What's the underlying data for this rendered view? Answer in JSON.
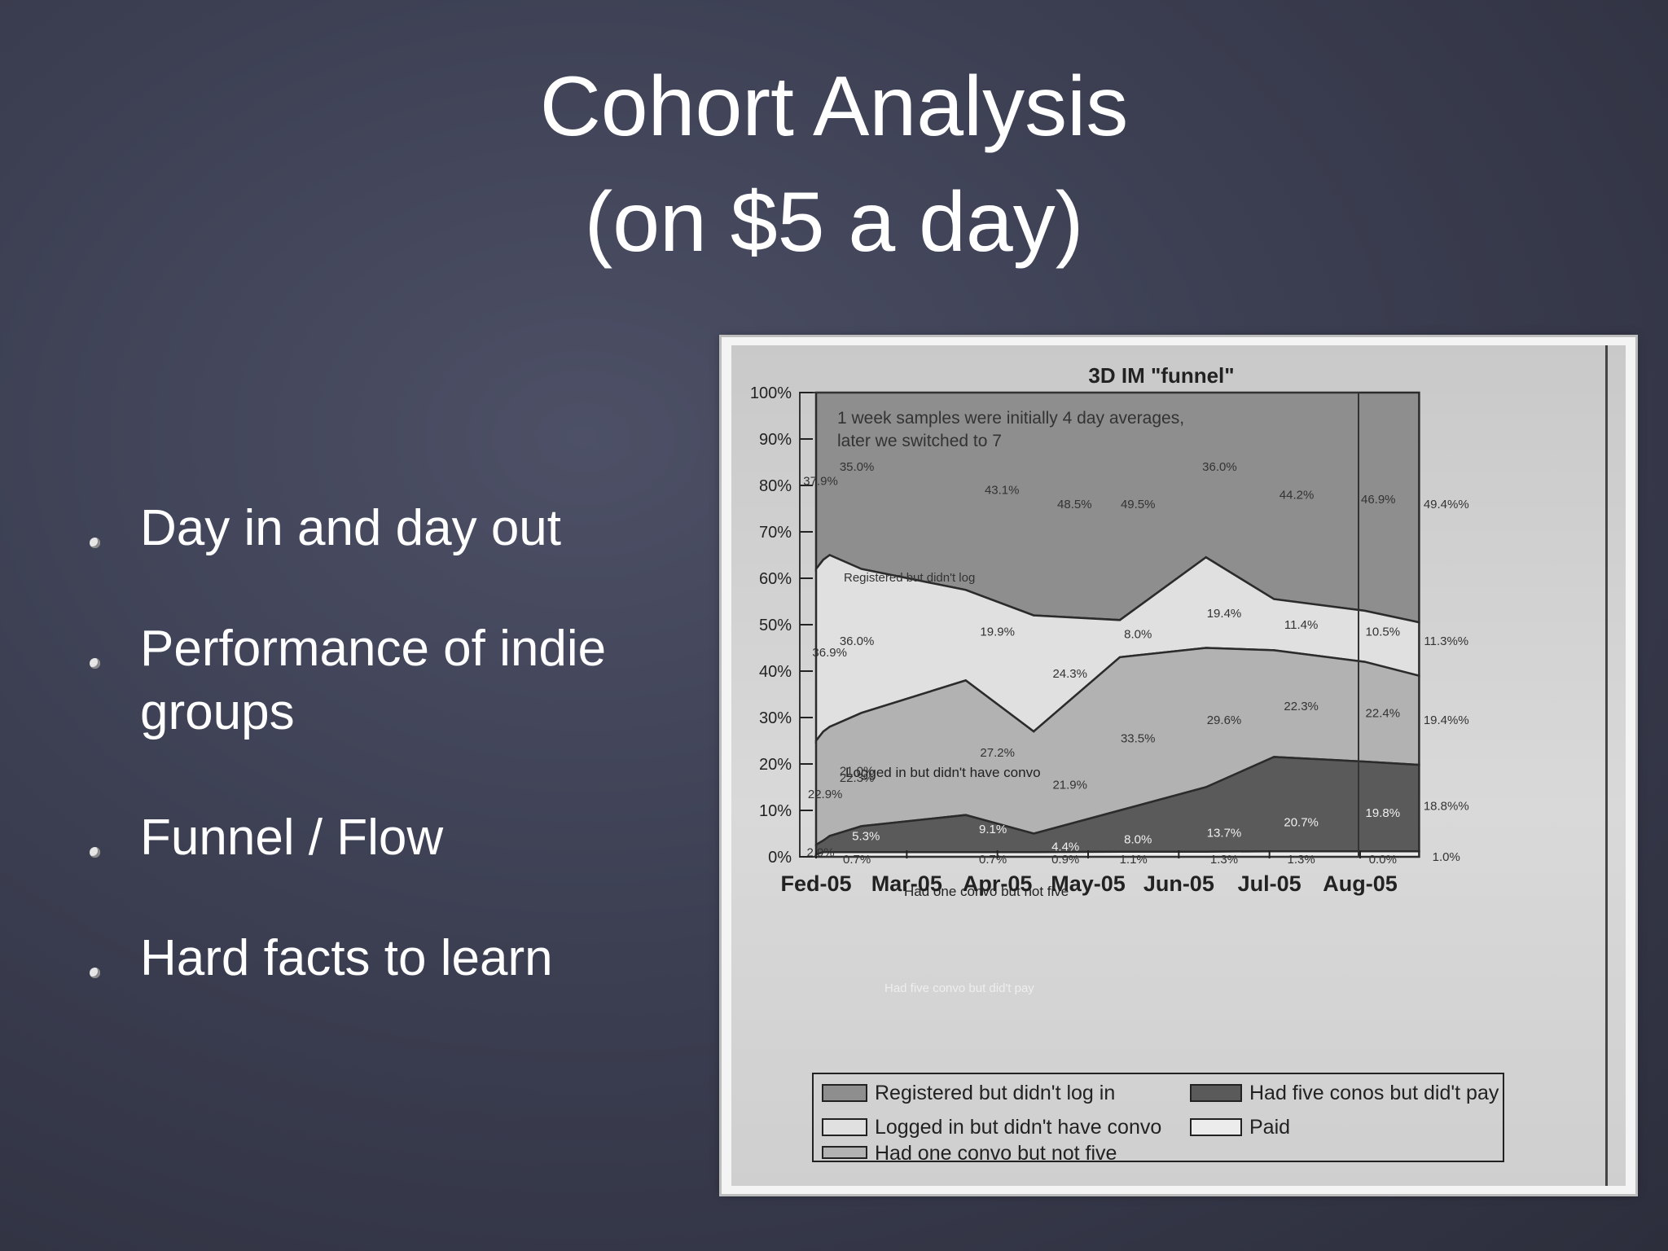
{
  "slide": {
    "title_line1": "Cohort Analysis",
    "title_line2": "(on $5 a day)",
    "bullets": [
      "Day in and day out",
      "Performance of indie groups",
      "Funnel / Flow",
      "Hard facts to learn"
    ]
  },
  "colors": {
    "background": "#3c3f52",
    "registered": "#8e8e8e",
    "logged_in": "#e0e0e0",
    "one_convo": "#b2b2b2",
    "five_convos": "#5a5a5a",
    "paid": "#ececec"
  },
  "chart_data": {
    "type": "area",
    "title": "3D IM \"funnel\"",
    "annotation_line1": "1 week samples were initially 4 day averages,",
    "annotation_line2": "later we switched to 7",
    "categories": [
      "Fed-05",
      "Mar-05",
      "Apr-05",
      "May-05",
      "Jun-05",
      "Jul-05",
      "Aug-05"
    ],
    "yticks": [
      "0%",
      "10%",
      "20%",
      "30%",
      "40%",
      "50%",
      "60%",
      "70%",
      "80%",
      "90%",
      "100%"
    ],
    "ylim": [
      0,
      100
    ],
    "legend_position": "bottom",
    "x": [
      0,
      0.08,
      0.15,
      0.5,
      1.65,
      2.4,
      3.35,
      4.3,
      5.05,
      6.05,
      6.65
    ],
    "cumulative_boundaries": {
      "paid": [
        0.5,
        1,
        1,
        1,
        1,
        1,
        1.1,
        1.1,
        1.2,
        1.2,
        1.2
      ],
      "five_convos": [
        2.6,
        3.5,
        4.5,
        6.6,
        9,
        5,
        10,
        15,
        21.5,
        20.5,
        19.8
      ],
      "one_convo": [
        25,
        27,
        28,
        31,
        38,
        27,
        43,
        45,
        44.5,
        42,
        39
      ],
      "logged_in": [
        62,
        64,
        65,
        62,
        57.5,
        52,
        51,
        64.5,
        55.5,
        53,
        50.5
      ],
      "registered": [
        100,
        100,
        100,
        100,
        100,
        100,
        100,
        100,
        100,
        100,
        100
      ]
    },
    "series": [
      {
        "name": "Registered but didn't log in",
        "label": "Registered but didn't log"
      },
      {
        "name": "Logged in but didn't have convo",
        "label": "Logged in but didn't have convo"
      },
      {
        "name": "Had one convo but not five",
        "label": "Had one convo but not five"
      },
      {
        "name": "Had five conos but did't pay",
        "label": "Had five convo but did't pay"
      },
      {
        "name": "Paid"
      }
    ],
    "data_labels": [
      {
        "text": "37.9%",
        "x": 0.05,
        "y": 81
      },
      {
        "text": "35.0%",
        "x": 0.45,
        "y": 84
      },
      {
        "text": "43.1%",
        "x": 2.05,
        "y": 79
      },
      {
        "text": "48.5%",
        "x": 2.85,
        "y": 76
      },
      {
        "text": "49.5%",
        "x": 3.55,
        "y": 76
      },
      {
        "text": "36.0%",
        "x": 4.45,
        "y": 84
      },
      {
        "text": "44.2%",
        "x": 5.3,
        "y": 78
      },
      {
        "text": "46.9%",
        "x": 6.2,
        "y": 77
      },
      {
        "text": "49.4%%",
        "x": 6.95,
        "y": 76
      },
      {
        "text": "36.0%",
        "x": 0.45,
        "y": 46.5
      },
      {
        "text": "36.9%",
        "x": 0.15,
        "y": 44
      },
      {
        "text": "19.9%",
        "x": 2.0,
        "y": 48.5
      },
      {
        "text": "8.0%",
        "x": 3.55,
        "y": 48
      },
      {
        "text": "19.4%",
        "x": 4.5,
        "y": 52.5
      },
      {
        "text": "11.4%",
        "x": 5.35,
        "y": 50
      },
      {
        "text": "10.5%",
        "x": 6.25,
        "y": 48.5
      },
      {
        "text": "11.3%%",
        "x": 6.95,
        "y": 46.5
      },
      {
        "text": "24.3%",
        "x": 2.8,
        "y": 39.5
      },
      {
        "text": "29.6%",
        "x": 4.5,
        "y": 29.5
      },
      {
        "text": "22.3%",
        "x": 5.35,
        "y": 32.5
      },
      {
        "text": "22.4%",
        "x": 6.25,
        "y": 31
      },
      {
        "text": "19.4%%",
        "x": 6.95,
        "y": 29.5
      },
      {
        "text": "27.2%",
        "x": 2.0,
        "y": 22.5
      },
      {
        "text": "33.5%",
        "x": 3.55,
        "y": 25.5
      },
      {
        "text": "21.0%",
        "x": 0.45,
        "y": 18.5
      },
      {
        "text": "22.3%",
        "x": 0.45,
        "y": 17
      },
      {
        "text": "22.9%",
        "x": 0.1,
        "y": 13.5
      },
      {
        "text": "21.9%",
        "x": 2.8,
        "y": 15.5
      },
      {
        "text": "9.1%",
        "x": 1.95,
        "y": 6
      },
      {
        "text": "5.3%",
        "x": 0.55,
        "y": 4.5
      },
      {
        "text": "4.4%",
        "x": 2.75,
        "y": 2.2
      },
      {
        "text": "8.0%",
        "x": 3.55,
        "y": 3.8
      },
      {
        "text": "13.7%",
        "x": 4.5,
        "y": 5.2
      },
      {
        "text": "20.7%",
        "x": 5.35,
        "y": 7.5
      },
      {
        "text": "19.8%",
        "x": 6.25,
        "y": 9.5
      },
      {
        "text": "18.8%%",
        "x": 6.95,
        "y": 11
      },
      {
        "text": "2.9%",
        "x": 0.05,
        "y": 1
      },
      {
        "text": "0.7%",
        "x": 0.45,
        "y": -0.5
      },
      {
        "text": "0.7%",
        "x": 1.95,
        "y": -0.5
      },
      {
        "text": "0.9%",
        "x": 2.75,
        "y": -0.5
      },
      {
        "text": "1.1%",
        "x": 3.5,
        "y": -0.5
      },
      {
        "text": "1.3%",
        "x": 4.5,
        "y": -0.5
      },
      {
        "text": "1.3%",
        "x": 5.35,
        "y": -0.5
      },
      {
        "text": "0.0%",
        "x": 6.25,
        "y": -0.5
      },
      {
        "text": "1.0%",
        "x": 6.95,
        "y": 0
      }
    ]
  }
}
